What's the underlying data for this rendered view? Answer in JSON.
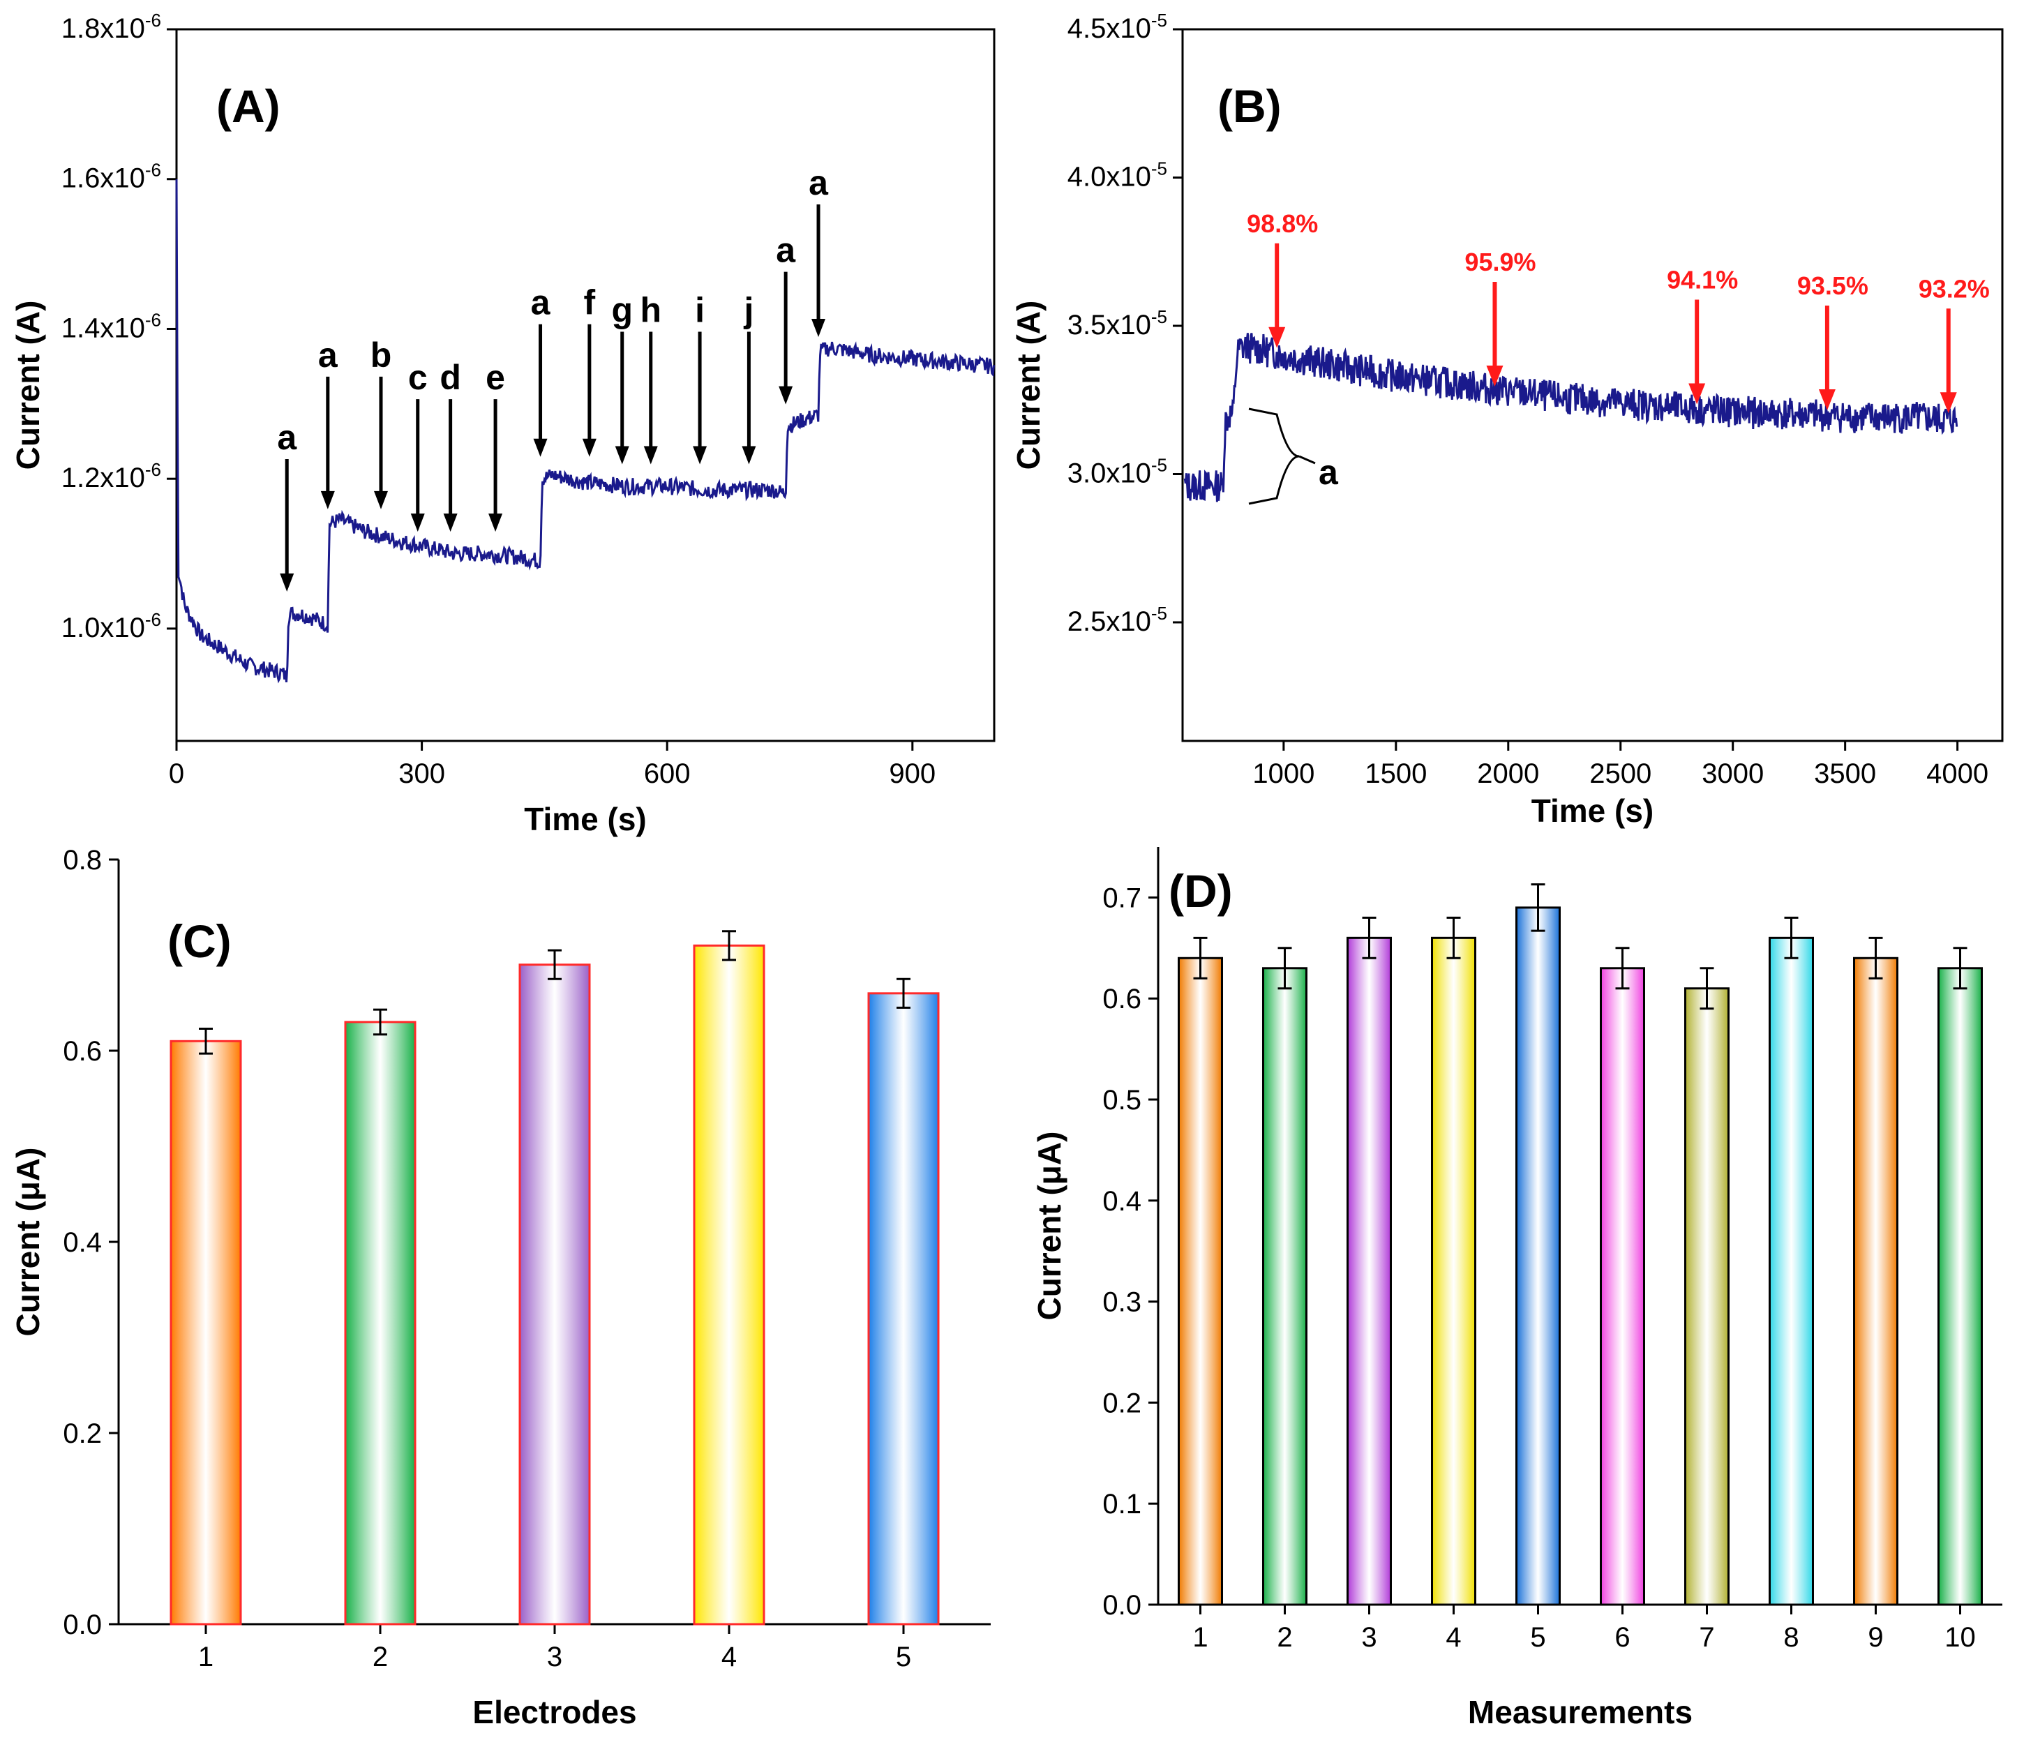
{
  "chart_data": [
    {
      "type": "line",
      "panel_label": "(A)",
      "xlabel": "Time (s)",
      "ylabel": "Current (A)",
      "xlim": [
        0,
        1000
      ],
      "ylim": [
        8.5e-07,
        1.8e-06
      ],
      "xticks": [
        0,
        300,
        600,
        900
      ],
      "xtick_labels": [
        "0",
        "300",
        "600",
        "900"
      ],
      "yticks": [
        1e-06,
        1.2e-06,
        1.4e-06,
        1.6e-06,
        1.8e-06
      ],
      "ytick_labels": [
        "1.0x10-6",
        "1.2x10-6",
        "1.4x10-6",
        "1.6x10-6",
        "1.8x10-6"
      ],
      "line_color": "#1a1a8c",
      "series": [
        {
          "x": [
            0,
            2,
            10,
            30,
            60,
            90,
            110,
            130,
            135,
            137,
            150,
            165,
            185,
            187,
            200,
            230,
            260,
            300,
            340,
            380,
            420,
            445,
            447,
            460,
            500,
            550,
            600,
            650,
            700,
            730,
            745,
            747,
            770,
            785,
            787,
            800,
            850,
            900,
            950,
            1000
          ],
          "y": [
            1.6e-06,
            1.08e-06,
            1.03e-06,
            9.9e-07,
            9.7e-07,
            9.5e-07,
            9.45e-07,
            9.4e-07,
            9.35e-07,
            1.02e-06,
            1.02e-06,
            1.015e-06,
            1.005e-06,
            1.14e-06,
            1.145e-06,
            1.13e-06,
            1.12e-06,
            1.11e-06,
            1.1e-06,
            1.1e-06,
            1.095e-06,
            1.09e-06,
            1.2e-06,
            1.205e-06,
            1.195e-06,
            1.19e-06,
            1.19e-06,
            1.185e-06,
            1.185e-06,
            1.185e-06,
            1.18e-06,
            1.27e-06,
            1.28e-06,
            1.285e-06,
            1.37e-06,
            1.375e-06,
            1.365e-06,
            1.36e-06,
            1.355e-06,
            1.35e-06
          ]
        }
      ],
      "annotations": [
        {
          "label": "a",
          "x": 135,
          "y": 1.04e-06
        },
        {
          "label": "a",
          "x": 185,
          "y": 1.15e-06
        },
        {
          "label": "b",
          "x": 250,
          "y": 1.15e-06
        },
        {
          "label": "c",
          "x": 295,
          "y": 1.12e-06
        },
        {
          "label": "d",
          "x": 335,
          "y": 1.12e-06
        },
        {
          "label": "e",
          "x": 390,
          "y": 1.12e-06
        },
        {
          "label": "a",
          "x": 445,
          "y": 1.22e-06
        },
        {
          "label": "f",
          "x": 505,
          "y": 1.22e-06
        },
        {
          "label": "g",
          "x": 545,
          "y": 1.21e-06
        },
        {
          "label": "h",
          "x": 580,
          "y": 1.21e-06
        },
        {
          "label": "i",
          "x": 640,
          "y": 1.21e-06
        },
        {
          "label": "j",
          "x": 700,
          "y": 1.21e-06
        },
        {
          "label": "a",
          "x": 745,
          "y": 1.29e-06
        },
        {
          "label": "a",
          "x": 785,
          "y": 1.38e-06
        }
      ]
    },
    {
      "type": "line",
      "panel_label": "(B)",
      "xlabel": "Time (s)",
      "ylabel": "Current (A)",
      "xlim": [
        550,
        4200
      ],
      "ylim": [
        2.1e-05,
        4.5e-05
      ],
      "xticks": [
        1000,
        1500,
        2000,
        2500,
        3000,
        3500,
        4000
      ],
      "xtick_labels": [
        "1000",
        "1500",
        "2000",
        "2500",
        "3000",
        "3500",
        "4000"
      ],
      "yticks": [
        2.5e-05,
        3e-05,
        3.5e-05,
        4e-05,
        4.5e-05
      ],
      "ytick_labels": [
        "2.5x10-5",
        "3.0x10-5",
        "3.5x10-5",
        "4.0x10-5",
        "4.5x10-5"
      ],
      "line_color": "#1a1a8c",
      "series": [
        {
          "x": [
            560,
            650,
            730,
            740,
            760,
            775,
            790,
            800,
            830,
            900,
            1000,
            1200,
            1500,
            1800,
            2000,
            2200,
            2500,
            2800,
            3000,
            3300,
            3600,
            3800,
            4000
          ],
          "y": [
            2.96e-05,
            2.96e-05,
            2.96e-05,
            3.18e-05,
            3.2e-05,
            3.2e-05,
            3.38e-05,
            3.42e-05,
            3.43e-05,
            3.42e-05,
            3.4e-05,
            3.37e-05,
            3.33e-05,
            3.3e-05,
            3.28e-05,
            3.26e-05,
            3.24e-05,
            3.22e-05,
            3.21e-05,
            3.2e-05,
            3.19e-05,
            3.19e-05,
            3.18e-05
          ]
        }
      ],
      "percent_labels": [
        {
          "text": "98.8%",
          "x": 970,
          "y": 3.43e-05
        },
        {
          "text": "95.9%",
          "x": 1940,
          "y": 3.3e-05
        },
        {
          "text": "94.1%",
          "x": 2840,
          "y": 3.24e-05
        },
        {
          "text": "93.5%",
          "x": 3420,
          "y": 3.22e-05
        },
        {
          "text": "93.2%",
          "x": 3960,
          "y": 3.21e-05
        }
      ],
      "bracket_label": "a"
    },
    {
      "type": "bar",
      "panel_label": "(C)",
      "xlabel": "Electrodes",
      "ylabel": "Current (μA)",
      "ylim": [
        0,
        0.8
      ],
      "yticks": [
        0.0,
        0.2,
        0.4,
        0.6,
        0.8
      ],
      "ytick_labels": [
        "0.0",
        "0.2",
        "0.4",
        "0.6",
        "0.8"
      ],
      "categories": [
        "1",
        "2",
        "3",
        "4",
        "5"
      ],
      "values": [
        0.61,
        0.63,
        0.69,
        0.71,
        0.66
      ],
      "errors": [
        0.013,
        0.013,
        0.015,
        0.015,
        0.015
      ],
      "colors": [
        "#ff7a00",
        "#18b048",
        "#9a5fc8",
        "#ffe600",
        "#1e7fe8"
      ],
      "outline": "#ff2a2a"
    },
    {
      "type": "bar",
      "panel_label": "(D)",
      "xlabel": "Measurements",
      "ylabel": "Current (μA)",
      "ylim": [
        0,
        0.75
      ],
      "yticks": [
        0.0,
        0.1,
        0.2,
        0.3,
        0.4,
        0.5,
        0.6,
        0.7
      ],
      "ytick_labels": [
        "0.0",
        "0.1",
        "0.2",
        "0.3",
        "0.4",
        "0.5",
        "0.6",
        "0.7"
      ],
      "categories": [
        "1",
        "2",
        "3",
        "4",
        "5",
        "6",
        "7",
        "8",
        "9",
        "10"
      ],
      "values": [
        0.64,
        0.63,
        0.66,
        0.66,
        0.69,
        0.63,
        0.61,
        0.66,
        0.64,
        0.63
      ],
      "errors": [
        0.02,
        0.02,
        0.02,
        0.02,
        0.023,
        0.02,
        0.02,
        0.02,
        0.02,
        0.02
      ],
      "colors": [
        "#f07a00",
        "#18b048",
        "#b03ad8",
        "#f0e000",
        "#1870d8",
        "#f040e0",
        "#b0b030",
        "#30d8e8",
        "#f07a00",
        "#18b048"
      ],
      "outline": "#000000"
    }
  ]
}
